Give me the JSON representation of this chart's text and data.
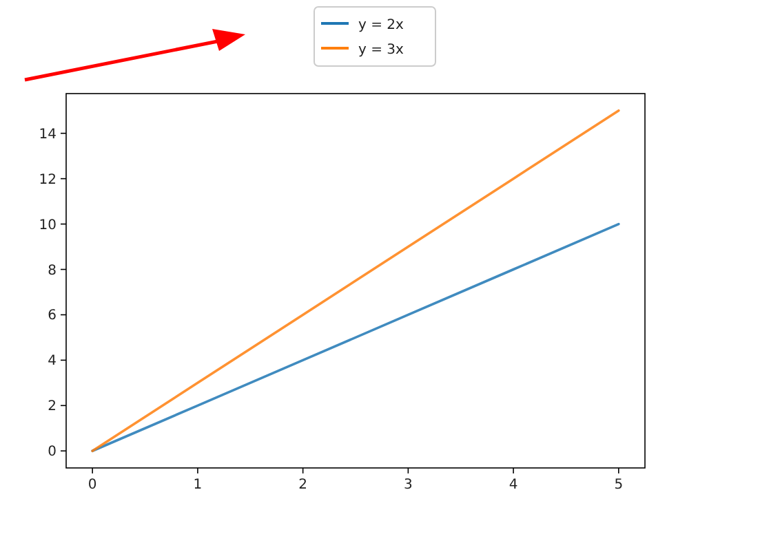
{
  "chart_data": {
    "type": "line",
    "x": [
      0,
      1,
      2,
      3,
      4,
      5
    ],
    "series": [
      {
        "name": "y = 2x",
        "color": "#1f77b4",
        "values": [
          0,
          2,
          4,
          6,
          8,
          10
        ]
      },
      {
        "name": "y = 3x",
        "color": "#ff7f0e",
        "values": [
          0,
          3,
          6,
          9,
          12,
          15
        ]
      }
    ],
    "xlim": [
      -0.25,
      5.25
    ],
    "xticks": [
      0,
      1,
      2,
      3,
      4,
      5
    ],
    "ylim": [
      -0.75,
      15.75
    ],
    "yticks": [
      0,
      2,
      4,
      6,
      8,
      10,
      12,
      14
    ],
    "legend": "top",
    "grid": false,
    "marker": "none",
    "line_style": "solid"
  }
}
